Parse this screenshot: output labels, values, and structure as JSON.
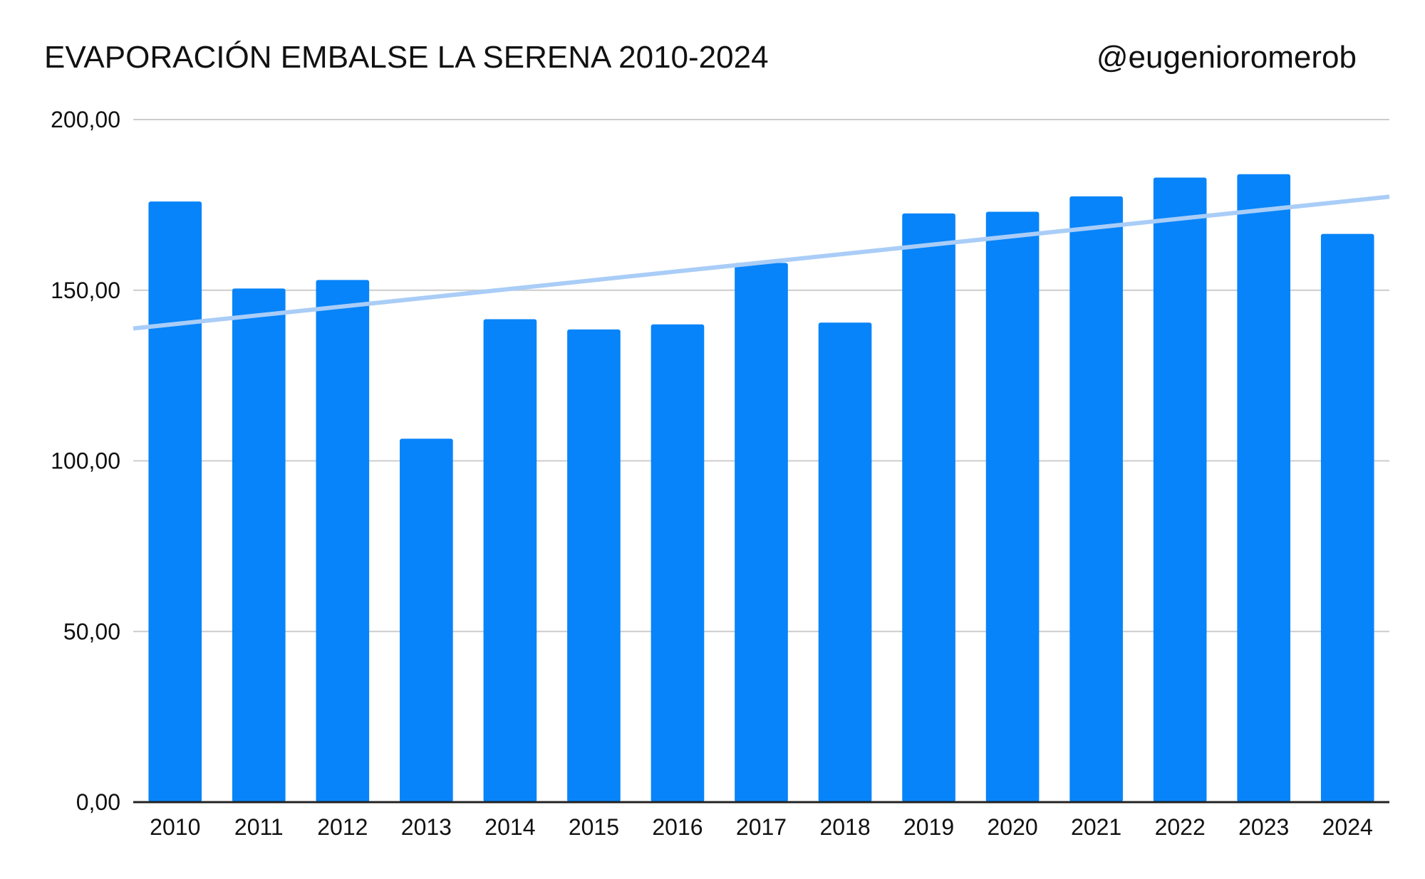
{
  "chart_data": {
    "type": "bar",
    "title": "EVAPORACIÓN EMBALSE LA SERENA 2010-2024",
    "credit": "@eugenioromerob",
    "xlabel": "",
    "ylabel": "",
    "categories": [
      "2010",
      "2011",
      "2012",
      "2013",
      "2014",
      "2015",
      "2016",
      "2017",
      "2018",
      "2019",
      "2020",
      "2021",
      "2022",
      "2023",
      "2024"
    ],
    "series": [
      {
        "name": "Evaporación",
        "values": [
          176,
          150.5,
          153,
          106.5,
          141.5,
          138.5,
          140,
          158,
          140.5,
          172.5,
          173,
          177.5,
          183,
          184,
          166.5
        ]
      }
    ],
    "trendline": {
      "start": 138.8,
      "end": 177.4
    },
    "ylim": [
      0,
      200
    ],
    "yticks": [
      0,
      50,
      100,
      150,
      200
    ],
    "ytick_labels": [
      "0,00",
      "50,00",
      "100,00",
      "150,00",
      "200,00"
    ],
    "grid": true,
    "legend": "none",
    "colors": {
      "bar": "#0784f9",
      "trend": "#a9cdf7",
      "grid": "#cccccc",
      "axis": "#222222"
    }
  }
}
